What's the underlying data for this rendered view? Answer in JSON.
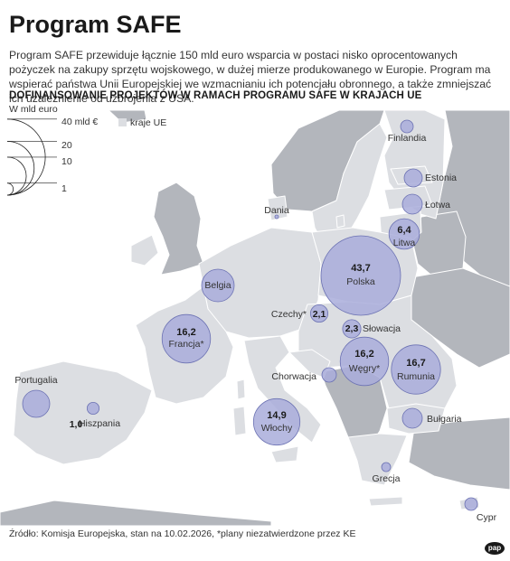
{
  "header": {
    "title": "Program SAFE",
    "description": "Program SAFE przewiduje łącznie 150 mld euro wsparcia w postaci nisko oprocentowanych pożyczek na zakupy sprzętu wojskowego, w dużej mierze produkowanego w Europie. Program ma wspierać państwa Unii Europejskiej we wzmacnianiu ich potencjału obronnego, a także zmniejszać ich uzależnienie od uzbrojenia z USA.",
    "subtitle": "DOFINANSOWANIE PROJEKTÓW W RAMACH PROGRAMU SAFE W KRAJACH UE",
    "unit": "W mld euro"
  },
  "legend": {
    "sizes": [
      {
        "value": 40,
        "label": "40 mld €"
      },
      {
        "value": 20,
        "label": "20"
      },
      {
        "value": 10,
        "label": "10"
      },
      {
        "value": 1,
        "label": "1"
      }
    ],
    "eu_label": "kraje UE"
  },
  "colors": {
    "eu_fill": "#dcdee2",
    "non_eu_fill": "#b3b6bc",
    "sea": "#ffffff",
    "bubble_fill": "#a9addb",
    "bubble_stroke": "#6c72b3"
  },
  "countries": [
    {
      "name": "Finlandia",
      "value": null,
      "value_label": ""
    },
    {
      "name": "Estonia",
      "value": null,
      "value_label": ""
    },
    {
      "name": "Łotwa",
      "value": null,
      "value_label": ""
    },
    {
      "name": "Litwa",
      "value": 6.4,
      "value_label": "6,4"
    },
    {
      "name": "Dania",
      "value": null,
      "value_label": ""
    },
    {
      "name": "Polska",
      "value": 43.7,
      "value_label": "43,7"
    },
    {
      "name": "Belgia",
      "value": null,
      "value_label": ""
    },
    {
      "name": "Czechy*",
      "value": 2.1,
      "value_label": "2,1"
    },
    {
      "name": "Słowacja",
      "value": 2.3,
      "value_label": "2,3"
    },
    {
      "name": "Francja*",
      "value": 16.2,
      "value_label": "16,2"
    },
    {
      "name": "Węgry*",
      "value": 16.2,
      "value_label": "16,2"
    },
    {
      "name": "Rumunia",
      "value": 16.7,
      "value_label": "16,7"
    },
    {
      "name": "Chorwacja",
      "value": null,
      "value_label": ""
    },
    {
      "name": "Portugalia",
      "value": null,
      "value_label": ""
    },
    {
      "name": "Hiszpania",
      "value": 1.0,
      "value_label": "1,0"
    },
    {
      "name": "Włochy",
      "value": 14.9,
      "value_label": "14,9"
    },
    {
      "name": "Bułgaria",
      "value": null,
      "value_label": ""
    },
    {
      "name": "Grecja",
      "value": null,
      "value_label": ""
    },
    {
      "name": "Cypr",
      "value": null,
      "value_label": ""
    }
  ],
  "footer": {
    "source": "Źródło: Komisja Europejska, stan na 10.02.2026, *plany niezatwierdzone przez KE",
    "logo": "pap"
  }
}
